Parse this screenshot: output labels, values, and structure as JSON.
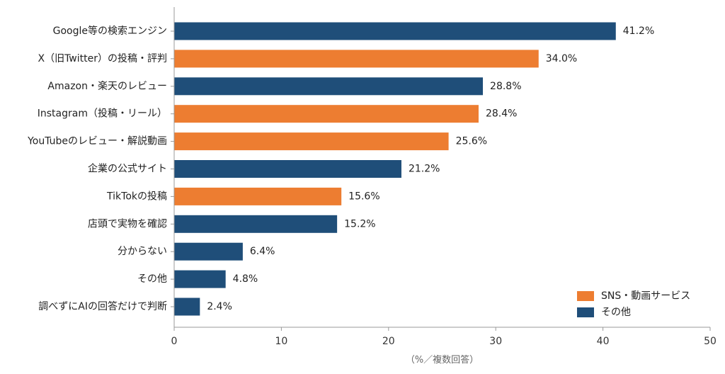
{
  "chart_data": {
    "type": "bar",
    "orientation": "horizontal",
    "categories": [
      "Google等の検索エンジン",
      "X（旧Twitter）の投稿・評判",
      "Amazon・楽天のレビュー",
      "Instagram（投稿・リール）",
      "YouTubeのレビュー・解説動画",
      "企業の公式サイト",
      "TikTokの投稿",
      "店頭で実物を確認",
      "分からない",
      "その他",
      "調べずにAIの回答だけで判断"
    ],
    "values": [
      41.2,
      34.0,
      28.8,
      28.4,
      25.6,
      21.2,
      15.6,
      15.2,
      6.4,
      4.8,
      2.4
    ],
    "value_labels": [
      "41.2%",
      "34.0%",
      "28.8%",
      "28.4%",
      "25.6%",
      "21.2%",
      "15.6%",
      "15.2%",
      "6.4%",
      "4.8%",
      "2.4%"
    ],
    "groups": [
      "other",
      "sns",
      "other",
      "sns",
      "sns",
      "other",
      "sns",
      "other",
      "other",
      "other",
      "other"
    ],
    "legend": [
      {
        "key": "sns",
        "name": "SNS・動画サービス",
        "color": "#ED7D31"
      },
      {
        "key": "other",
        "name": "その他",
        "color": "#1F4E79"
      }
    ],
    "legend_position": "bottom-right",
    "xlim": [
      0,
      50
    ],
    "xticks": [
      0,
      10,
      20,
      30,
      40,
      50
    ],
    "xlabel": "（%／複数回答）",
    "ylabel": "",
    "title": "",
    "grid": false
  }
}
